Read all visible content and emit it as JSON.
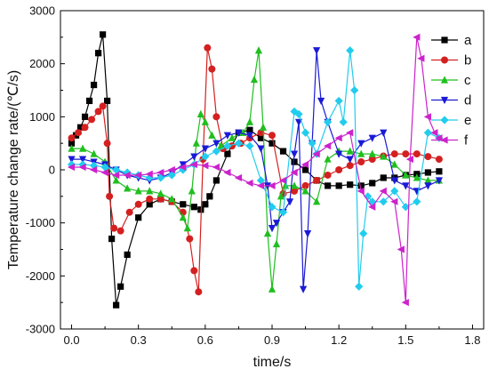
{
  "chart_data": {
    "type": "line",
    "title": "",
    "xlabel": "time/s",
    "ylabel": "Temperature change rate/(℃/s)",
    "xlim": [
      -0.05,
      1.85
    ],
    "ylim": [
      -3000,
      3000
    ],
    "xticks": [
      "0.0",
      "0.3",
      "0.6",
      "0.9",
      "1.2",
      "1.5",
      "1.8"
    ],
    "xtick_values": [
      0,
      0.3,
      0.6,
      0.9,
      1.2,
      1.5,
      1.8
    ],
    "yticks": [
      "-3000",
      "-2000",
      "-1000",
      "0",
      "1000",
      "2000",
      "3000"
    ],
    "ytick_values": [
      -3000,
      -2000,
      -1000,
      0,
      1000,
      2000,
      3000
    ],
    "grid": false,
    "legend_position": "top-right",
    "series": [
      {
        "name": "a",
        "color": "#000000",
        "marker": "square",
        "x": [
          0.0,
          0.02,
          0.04,
          0.06,
          0.08,
          0.1,
          0.12,
          0.14,
          0.16,
          0.18,
          0.2,
          0.22,
          0.25,
          0.3,
          0.35,
          0.4,
          0.45,
          0.5,
          0.55,
          0.58,
          0.6,
          0.62,
          0.65,
          0.7,
          0.75,
          0.8,
          0.85,
          0.9,
          0.95,
          1.0,
          1.05,
          1.1,
          1.15,
          1.2,
          1.25,
          1.3,
          1.35,
          1.4,
          1.45,
          1.5,
          1.55,
          1.6,
          1.65
        ],
        "y": [
          500,
          650,
          800,
          1000,
          1300,
          1600,
          2200,
          2550,
          1300,
          -1300,
          -2550,
          -2200,
          -1600,
          -900,
          -650,
          -550,
          -600,
          -650,
          -700,
          -750,
          -650,
          -500,
          -200,
          300,
          700,
          750,
          600,
          500,
          350,
          150,
          0,
          -200,
          -300,
          -300,
          -280,
          -300,
          -250,
          -150,
          -150,
          -100,
          -80,
          -50,
          -30
        ]
      },
      {
        "name": "b",
        "color": "#d42020",
        "marker": "circle",
        "x": [
          0.0,
          0.03,
          0.06,
          0.09,
          0.12,
          0.14,
          0.16,
          0.17,
          0.19,
          0.22,
          0.26,
          0.3,
          0.35,
          0.4,
          0.45,
          0.5,
          0.53,
          0.55,
          0.57,
          0.59,
          0.61,
          0.63,
          0.65,
          0.68,
          0.72,
          0.76,
          0.8,
          0.85,
          0.9,
          0.95,
          1.0,
          1.05,
          1.1,
          1.15,
          1.2,
          1.25,
          1.3,
          1.35,
          1.4,
          1.45,
          1.5,
          1.55,
          1.6,
          1.65
        ],
        "y": [
          600,
          700,
          800,
          950,
          1100,
          1200,
          500,
          -500,
          -1100,
          -1150,
          -800,
          -650,
          -550,
          -550,
          -600,
          -800,
          -1300,
          -1900,
          -2300,
          200,
          2300,
          1900,
          1000,
          400,
          450,
          500,
          600,
          700,
          650,
          -450,
          -400,
          -300,
          -200,
          -100,
          0,
          80,
          150,
          200,
          260,
          300,
          300,
          300,
          250,
          200
        ]
      },
      {
        "name": "c",
        "color": "#1fbf1f",
        "marker": "triangle-up",
        "x": [
          0.0,
          0.05,
          0.1,
          0.15,
          0.2,
          0.25,
          0.3,
          0.35,
          0.4,
          0.45,
          0.5,
          0.52,
          0.54,
          0.56,
          0.58,
          0.6,
          0.63,
          0.67,
          0.72,
          0.77,
          0.8,
          0.82,
          0.84,
          0.86,
          0.88,
          0.9,
          0.92,
          0.94,
          0.96,
          1.0,
          1.05,
          1.1,
          1.15,
          1.2,
          1.25,
          1.3,
          1.35,
          1.4,
          1.45,
          1.5,
          1.55,
          1.6,
          1.65
        ],
        "y": [
          400,
          400,
          300,
          150,
          -200,
          -350,
          -400,
          -400,
          -450,
          -550,
          -900,
          -1100,
          -400,
          500,
          1050,
          900,
          650,
          450,
          600,
          700,
          900,
          1700,
          2250,
          800,
          -1200,
          -2250,
          -1400,
          -500,
          -300,
          -300,
          -400,
          -600,
          200,
          350,
          350,
          300,
          300,
          250,
          100,
          -100,
          -150,
          -200,
          -200
        ]
      },
      {
        "name": "d",
        "color": "#1a1ad6",
        "marker": "triangle-down",
        "x": [
          0.0,
          0.05,
          0.1,
          0.15,
          0.2,
          0.25,
          0.3,
          0.35,
          0.4,
          0.45,
          0.5,
          0.55,
          0.6,
          0.65,
          0.7,
          0.75,
          0.8,
          0.85,
          0.88,
          0.9,
          0.92,
          0.95,
          0.98,
          1.0,
          1.02,
          1.04,
          1.06,
          1.08,
          1.1,
          1.12,
          1.15,
          1.2,
          1.25,
          1.3,
          1.35,
          1.4,
          1.45,
          1.5,
          1.55,
          1.6,
          1.65
        ],
        "y": [
          200,
          200,
          150,
          100,
          0,
          -100,
          -150,
          -200,
          -150,
          -50,
          100,
          250,
          400,
          500,
          650,
          700,
          650,
          400,
          -300,
          -1100,
          -1000,
          -800,
          -600,
          300,
          900,
          -2250,
          -1200,
          500,
          2250,
          1300,
          900,
          300,
          200,
          500,
          600,
          700,
          -200,
          -300,
          -400,
          -300,
          -200
        ]
      },
      {
        "name": "e",
        "color": "#22ccee",
        "marker": "diamond",
        "x": [
          0.0,
          0.05,
          0.1,
          0.15,
          0.2,
          0.25,
          0.3,
          0.35,
          0.4,
          0.45,
          0.5,
          0.55,
          0.6,
          0.65,
          0.7,
          0.75,
          0.8,
          0.85,
          0.9,
          0.95,
          1.0,
          1.02,
          1.05,
          1.08,
          1.1,
          1.15,
          1.2,
          1.22,
          1.25,
          1.27,
          1.29,
          1.31,
          1.33,
          1.35,
          1.4,
          1.45,
          1.5,
          1.55,
          1.6,
          1.65
        ],
        "y": [
          100,
          100,
          80,
          50,
          0,
          -50,
          -100,
          -150,
          -150,
          -100,
          0,
          100,
          250,
          350,
          450,
          500,
          450,
          -200,
          -700,
          -800,
          1100,
          1050,
          700,
          500,
          300,
          900,
          1300,
          900,
          2250,
          1500,
          -2200,
          -1200,
          -500,
          -600,
          -600,
          -400,
          -700,
          -600,
          700,
          600
        ]
      },
      {
        "name": "f",
        "color": "#cc22cc",
        "marker": "triangle-left",
        "x": [
          0.0,
          0.05,
          0.1,
          0.15,
          0.2,
          0.25,
          0.3,
          0.35,
          0.4,
          0.45,
          0.5,
          0.55,
          0.6,
          0.65,
          0.7,
          0.75,
          0.8,
          0.85,
          0.9,
          0.95,
          1.0,
          1.05,
          1.1,
          1.15,
          1.2,
          1.25,
          1.3,
          1.35,
          1.4,
          1.45,
          1.48,
          1.5,
          1.52,
          1.55,
          1.57,
          1.6,
          1.63,
          1.65
        ],
        "y": [
          50,
          50,
          0,
          -50,
          -100,
          -100,
          -100,
          -80,
          -50,
          0,
          50,
          100,
          80,
          50,
          -50,
          -150,
          -250,
          -300,
          -300,
          -200,
          -50,
          100,
          300,
          450,
          600,
          700,
          -400,
          -700,
          -400,
          -600,
          -1500,
          -2500,
          200,
          2500,
          2100,
          1000,
          700,
          600
        ]
      }
    ]
  }
}
